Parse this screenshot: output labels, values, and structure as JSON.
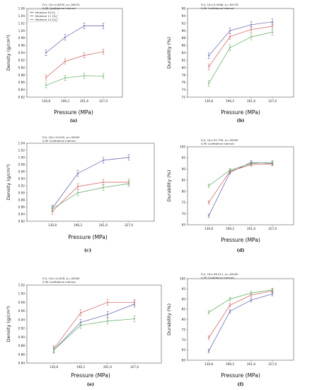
{
  "colors": {
    "m8": "#5a5aa8",
    "m11": "#d05a5a",
    "m14": "#5aa85a"
  },
  "chart_data": [
    {
      "type": "line",
      "panel": "(a)",
      "stat_line": "F(4, 24)=0,8255, p=,00074",
      "ci_line": "0,95 Confidence interval",
      "xlabel": "Pressure (MPa)",
      "ylabel": "Density (g/cm³)",
      "categories": [
        "130,8",
        "196,2",
        "261,6",
        "327,0"
      ],
      "ylim": [
        0.82,
        1.06
      ],
      "yticks": [
        "0.82",
        "0.84",
        "0.86",
        "0.88",
        "0.90",
        "0.92",
        "0.94",
        "0.96",
        "0.98",
        "1.00",
        "1.02",
        "1.04",
        "1.06"
      ],
      "legend": true,
      "series": [
        {
          "name": "Moisture 8 [%]",
          "values": [
            0.94,
            0.982,
            1.013,
            1.013
          ],
          "err": [
            0.008,
            0.008,
            0.008,
            0.008
          ]
        },
        {
          "name": "Moisture 11 [%]",
          "values": [
            0.873,
            0.917,
            0.933,
            0.943
          ],
          "err": [
            0.007,
            0.007,
            0.007,
            0.007
          ]
        },
        {
          "name": "Moisture 14 [%]",
          "values": [
            0.852,
            0.872,
            0.878,
            0.877
          ],
          "err": [
            0.007,
            0.007,
            0.007,
            0.007
          ]
        }
      ]
    },
    {
      "type": "line",
      "panel": "(b)",
      "stat_line": "F(4, 24)=5,0466, p=,00178",
      "ci_line": "0,95 Confidence interval",
      "xlabel": "Pressure (MPa)",
      "ylabel": "Durability (%)",
      "categories": [
        "130,8",
        "196,2",
        "261,6",
        "327,0"
      ],
      "ylim": [
        72,
        96
      ],
      "yticks": [
        "72",
        "74",
        "76",
        "78",
        "80",
        "82",
        "84",
        "86",
        "88",
        "90",
        "92",
        "94",
        "96"
      ],
      "legend": false,
      "series": [
        {
          "name": "Moisture 8 [%]",
          "values": [
            83.2,
            90.0,
            91.6,
            92.4
          ],
          "err": [
            0.8,
            0.8,
            0.8,
            0.8
          ]
        },
        {
          "name": "Moisture 11 [%]",
          "values": [
            80.2,
            88.4,
            90.3,
            91.2
          ],
          "err": [
            0.8,
            0.8,
            0.8,
            0.8
          ]
        },
        {
          "name": "Moisture 14 [%]",
          "values": [
            75.7,
            85.4,
            88.3,
            89.6
          ],
          "err": [
            0.8,
            0.8,
            0.8,
            0.8
          ]
        }
      ]
    },
    {
      "type": "line",
      "panel": "(c)",
      "stat_line": "F(4, 24)=13,520, p=,00000",
      "ci_line": "0,95 Confidence interval",
      "xlabel": "Pressure (MPa)",
      "ylabel": "Density (g/cm³)",
      "categories": [
        "130,8",
        "196,2",
        "261,6",
        "327,0"
      ],
      "ylim": [
        0.82,
        1.04
      ],
      "yticks": [
        "0.82",
        "0.84",
        "0.86",
        "0.88",
        "0.90",
        "0.92",
        "0.94",
        "0.96",
        "0.98",
        "1.00",
        "1.02",
        "1.04"
      ],
      "legend": false,
      "series": [
        {
          "name": "Moisture 8 [%]",
          "values": [
            0.857,
            0.955,
            0.992,
            1.0
          ],
          "err": [
            0.008,
            0.008,
            0.008,
            0.008
          ]
        },
        {
          "name": "Moisture 11 [%]",
          "values": [
            0.848,
            0.918,
            0.93,
            0.93
          ],
          "err": [
            0.008,
            0.008,
            0.008,
            0.008
          ]
        },
        {
          "name": "Moisture 14 [%]",
          "values": [
            0.855,
            0.9,
            0.915,
            0.926
          ],
          "err": [
            0.008,
            0.008,
            0.008,
            0.008
          ]
        }
      ]
    },
    {
      "type": "line",
      "panel": "(d)",
      "stat_line": "F(4, 24)=52,759, p=,00000",
      "ci_line": "0,95 Confidence interval",
      "xlabel": "Pressure (MPa)",
      "ylabel": "Durability (%)",
      "categories": [
        "130,8",
        "196,2",
        "261,6",
        "327,0"
      ],
      "ylim": [
        65,
        100
      ],
      "yticks": [
        "65",
        "70",
        "75",
        "80",
        "85",
        "90",
        "95",
        "100"
      ],
      "legend": false,
      "series": [
        {
          "name": "Moisture 8 [%]",
          "values": [
            69.0,
            88.5,
            93.0,
            92.5
          ],
          "err": [
            0.8,
            0.8,
            0.8,
            0.8
          ]
        },
        {
          "name": "Moisture 11 [%]",
          "values": [
            75.0,
            89.0,
            92.0,
            92.3
          ],
          "err": [
            0.8,
            0.8,
            0.8,
            0.8
          ]
        },
        {
          "name": "Moisture 14 [%]",
          "values": [
            82.5,
            89.5,
            92.5,
            93.0
          ],
          "err": [
            0.8,
            0.8,
            0.8,
            0.8
          ]
        }
      ]
    },
    {
      "type": "line",
      "panel": "(e)",
      "stat_line": "F(4, 24)=12,618, p=,00000",
      "ci_line": "0,95 Confidence interval",
      "xlabel": "Pressure (MPa)",
      "ylabel": "Density (g/cm³)",
      "categories": [
        "130,8",
        "196,2",
        "261,6",
        "327,0"
      ],
      "ylim": [
        0.84,
        1.02
      ],
      "yticks": [
        "0.84",
        "0.86",
        "0.88",
        "0.90",
        "0.92",
        "0.94",
        "0.96",
        "0.98",
        "1.00",
        "1.02"
      ],
      "legend": false,
      "series": [
        {
          "name": "Moisture 8 [%]",
          "values": [
            0.87,
            0.934,
            0.952,
            0.976
          ],
          "err": [
            0.007,
            0.007,
            0.007,
            0.007
          ]
        },
        {
          "name": "Moisture 11 [%]",
          "values": [
            0.873,
            0.956,
            0.98,
            0.98
          ],
          "err": [
            0.007,
            0.007,
            0.007,
            0.007
          ]
        },
        {
          "name": "Moisture 14 [%]",
          "values": [
            0.87,
            0.927,
            0.937,
            0.942
          ],
          "err": [
            0.007,
            0.007,
            0.007,
            0.007
          ]
        }
      ]
    },
    {
      "type": "line",
      "panel": "(f)",
      "stat_line": "F(4, 24)=46,411, p=,00000",
      "ci_line": "0,95 Confidence interval",
      "xlabel": "Pressure (MPa)",
      "ylabel": "Durability (%)",
      "categories": [
        "130,8",
        "196,2",
        "261,6",
        "327,0"
      ],
      "ylim": [
        60,
        100
      ],
      "yticks": [
        "60",
        "65",
        "70",
        "75",
        "80",
        "85",
        "90",
        "95",
        "100"
      ],
      "legend": false,
      "series": [
        {
          "name": "Moisture 8 [%]",
          "values": [
            64.5,
            84.0,
            89.5,
            92.5
          ],
          "err": [
            0.9,
            0.9,
            0.9,
            0.9
          ]
        },
        {
          "name": "Moisture 11 [%]",
          "values": [
            71.0,
            87.0,
            92.0,
            94.0
          ],
          "err": [
            0.9,
            0.9,
            0.9,
            0.9
          ]
        },
        {
          "name": "Moisture 14 [%]",
          "values": [
            83.5,
            90.0,
            93.0,
            94.5
          ],
          "err": [
            0.9,
            0.9,
            0.9,
            0.9
          ]
        }
      ]
    }
  ]
}
